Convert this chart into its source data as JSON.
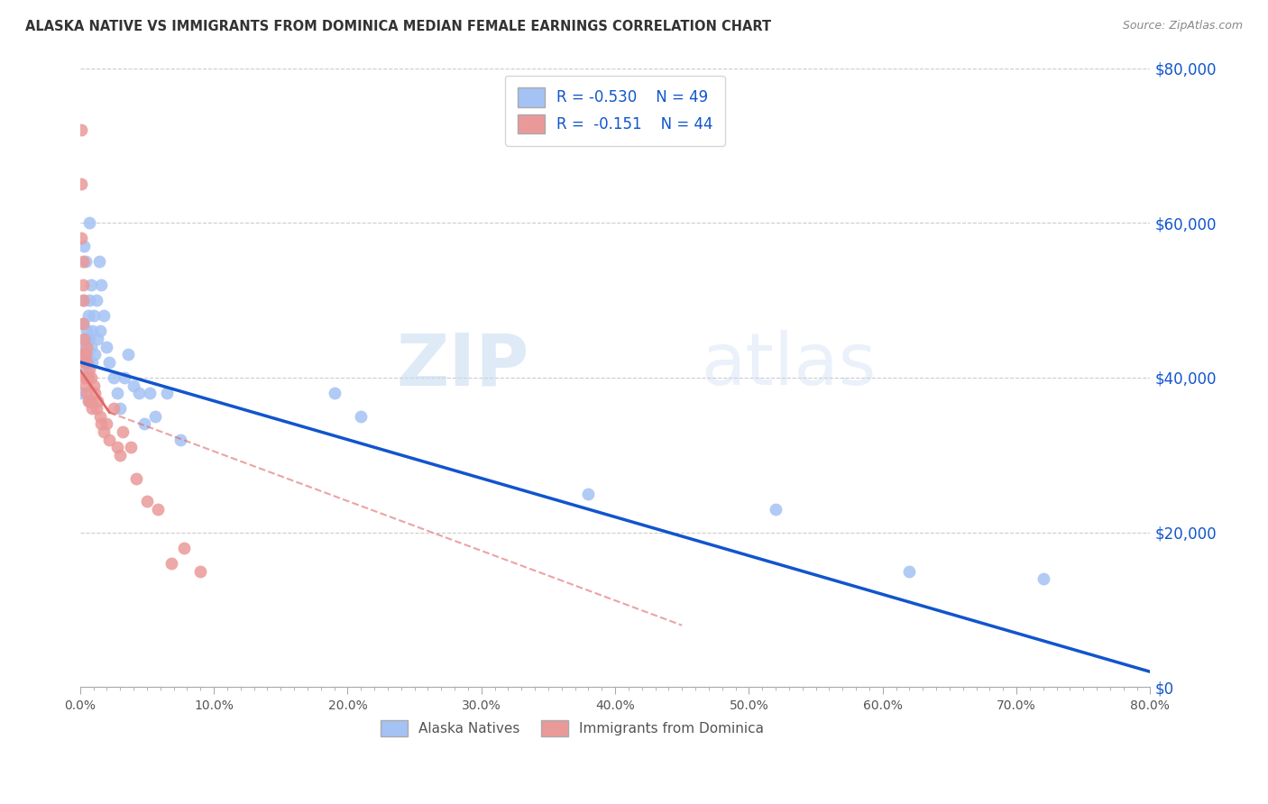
{
  "title": "ALASKA NATIVE VS IMMIGRANTS FROM DOMINICA MEDIAN FEMALE EARNINGS CORRELATION CHART",
  "source": "Source: ZipAtlas.com",
  "xlabel_ticks": [
    "0.0%",
    "",
    "",
    "",
    "",
    "",
    "",
    "",
    "",
    "",
    "10.0%",
    "",
    "",
    "",
    "",
    "",
    "",
    "",
    "",
    "",
    "20.0%",
    "",
    "",
    "",
    "",
    "",
    "",
    "",
    "",
    "",
    "30.0%",
    "",
    "",
    "",
    "",
    "",
    "",
    "",
    "",
    "",
    "40.0%",
    "",
    "",
    "",
    "",
    "",
    "",
    "",
    "",
    "",
    "50.0%",
    "",
    "",
    "",
    "",
    "",
    "",
    "",
    "",
    "",
    "60.0%",
    "",
    "",
    "",
    "",
    "",
    "",
    "",
    "",
    "",
    "70.0%",
    "",
    "",
    "",
    "",
    "",
    "",
    "",
    "",
    "",
    "80.0%"
  ],
  "xlabel_vals": [
    0.0,
    0.01,
    0.02,
    0.03,
    0.04,
    0.05,
    0.06,
    0.07,
    0.08,
    0.09,
    0.1,
    0.11,
    0.12,
    0.13,
    0.14,
    0.15,
    0.16,
    0.17,
    0.18,
    0.19,
    0.2,
    0.21,
    0.22,
    0.23,
    0.24,
    0.25,
    0.26,
    0.27,
    0.28,
    0.29,
    0.3,
    0.31,
    0.32,
    0.33,
    0.34,
    0.35,
    0.36,
    0.37,
    0.38,
    0.39,
    0.4,
    0.41,
    0.42,
    0.43,
    0.44,
    0.45,
    0.46,
    0.47,
    0.48,
    0.49,
    0.5,
    0.51,
    0.52,
    0.53,
    0.54,
    0.55,
    0.56,
    0.57,
    0.58,
    0.59,
    0.6,
    0.61,
    0.62,
    0.63,
    0.64,
    0.65,
    0.66,
    0.67,
    0.68,
    0.69,
    0.7,
    0.71,
    0.72,
    0.73,
    0.74,
    0.75,
    0.76,
    0.77,
    0.78,
    0.79,
    0.8
  ],
  "major_xtick_vals": [
    0.0,
    0.1,
    0.2,
    0.3,
    0.4,
    0.5,
    0.6,
    0.7,
    0.8
  ],
  "major_xtick_labels": [
    "0.0%",
    "10.0%",
    "20.0%",
    "30.0%",
    "40.0%",
    "50.0%",
    "60.0%",
    "70.0%",
    "80.0%"
  ],
  "ylabel_ticks": [
    "$80,000",
    "$60,000",
    "$40,000",
    "$20,000",
    "$0"
  ],
  "ylabel_vals": [
    80000,
    60000,
    40000,
    20000,
    0
  ],
  "xlim": [
    0,
    0.8
  ],
  "ylim": [
    0,
    80000
  ],
  "watermark_zip": "ZIP",
  "watermark_atlas": "atlas",
  "legend_r1": "R = -0.530",
  "legend_n1": "N = 49",
  "legend_r2": "R =  -0.151",
  "legend_n2": "N = 44",
  "blue_color": "#a4c2f4",
  "pink_color": "#ea9999",
  "blue_line_color": "#1155cc",
  "pink_line_color": "#e06666",
  "pink_line_dash_color": "#e06666",
  "alaska_x": [
    0.001,
    0.002,
    0.002,
    0.003,
    0.003,
    0.003,
    0.004,
    0.004,
    0.004,
    0.005,
    0.005,
    0.005,
    0.006,
    0.006,
    0.007,
    0.007,
    0.007,
    0.008,
    0.008,
    0.009,
    0.009,
    0.01,
    0.011,
    0.012,
    0.013,
    0.014,
    0.015,
    0.016,
    0.018,
    0.02,
    0.022,
    0.025,
    0.028,
    0.03,
    0.033,
    0.036,
    0.04,
    0.044,
    0.048,
    0.052,
    0.056,
    0.065,
    0.075,
    0.19,
    0.21,
    0.38,
    0.52,
    0.62,
    0.72
  ],
  "alaska_y": [
    38000,
    43000,
    47000,
    44000,
    50000,
    57000,
    42000,
    45000,
    55000,
    43000,
    46000,
    41000,
    48000,
    42000,
    50000,
    45000,
    60000,
    44000,
    52000,
    46000,
    42000,
    48000,
    43000,
    50000,
    45000,
    55000,
    46000,
    52000,
    48000,
    44000,
    42000,
    40000,
    38000,
    36000,
    40000,
    43000,
    39000,
    38000,
    34000,
    38000,
    35000,
    38000,
    32000,
    38000,
    35000,
    25000,
    23000,
    15000,
    14000
  ],
  "dominica_x": [
    0.001,
    0.001,
    0.001,
    0.002,
    0.002,
    0.002,
    0.002,
    0.003,
    0.003,
    0.003,
    0.003,
    0.004,
    0.004,
    0.005,
    0.005,
    0.005,
    0.005,
    0.006,
    0.006,
    0.007,
    0.007,
    0.008,
    0.008,
    0.009,
    0.01,
    0.011,
    0.012,
    0.013,
    0.015,
    0.016,
    0.018,
    0.02,
    0.022,
    0.025,
    0.028,
    0.03,
    0.032,
    0.038,
    0.042,
    0.05,
    0.058,
    0.068,
    0.078,
    0.09
  ],
  "dominica_y": [
    72000,
    65000,
    58000,
    55000,
    52000,
    50000,
    47000,
    45000,
    43000,
    42000,
    40000,
    43000,
    39000,
    44000,
    42000,
    40000,
    38000,
    40000,
    37000,
    41000,
    37000,
    40000,
    37000,
    36000,
    39000,
    38000,
    36000,
    37000,
    35000,
    34000,
    33000,
    34000,
    32000,
    36000,
    31000,
    30000,
    33000,
    31000,
    27000,
    24000,
    23000,
    16000,
    18000,
    15000
  ],
  "blue_line_x": [
    0.0,
    0.8
  ],
  "blue_line_y": [
    42000,
    2000
  ],
  "pink_solid_line_x": [
    0.0,
    0.022
  ],
  "pink_solid_line_y": [
    41000,
    35500
  ],
  "pink_dash_line_x": [
    0.022,
    0.45
  ],
  "pink_dash_line_y": [
    35500,
    8000
  ],
  "background_color": "#ffffff",
  "grid_color": "#cccccc"
}
